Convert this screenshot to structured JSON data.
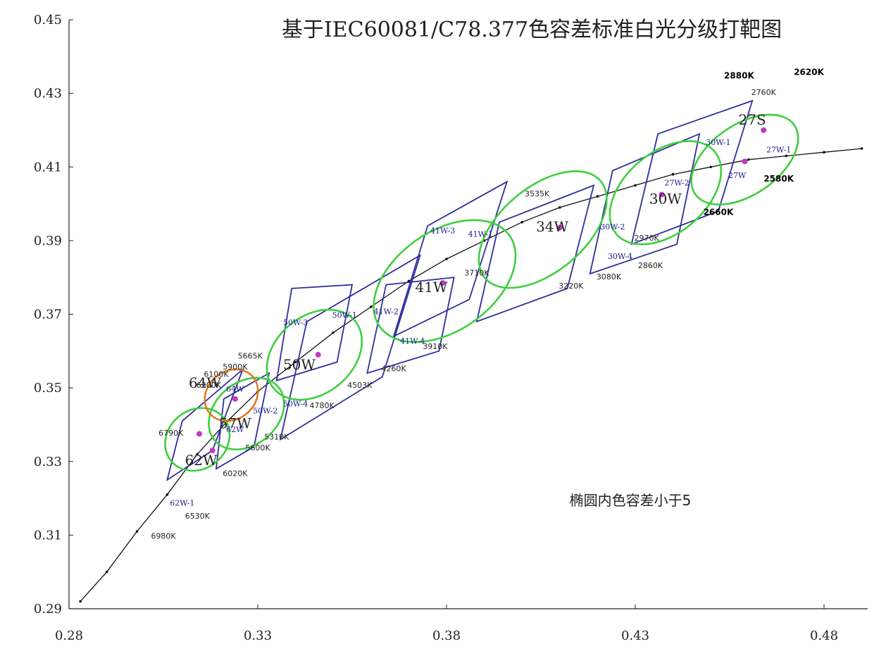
{
  "chart_data": {
    "type": "scatter",
    "title": "基于IEC60081/C78.377色容差标准白光分级打靶图",
    "annotation": "椭圆内色容差小于5",
    "xlim": [
      0.28,
      0.485
    ],
    "ylim": [
      0.29,
      0.45
    ],
    "x_ticks": [
      "0.28",
      "0.33",
      "0.38",
      "0.43",
      "0.48"
    ],
    "y_ticks": [
      "0.29",
      "0.31",
      "0.33",
      "0.35",
      "0.37",
      "0.39",
      "0.41",
      "0.43",
      "0.45"
    ],
    "x_tick_values": [
      0.28,
      0.33,
      0.38,
      0.43,
      0.48
    ],
    "y_tick_values": [
      0.29,
      0.31,
      0.33,
      0.35,
      0.37,
      0.39,
      0.41,
      0.43,
      0.45
    ],
    "grid": false,
    "colors": {
      "blue": "#2e2e9e",
      "green": "#3fcf3f",
      "magenta": "#c23ac2",
      "orange": "#e07a1f",
      "black": "#111111"
    },
    "locus": [
      [
        0.283,
        0.292
      ],
      [
        0.29,
        0.3
      ],
      [
        0.298,
        0.311
      ],
      [
        0.306,
        0.321
      ],
      [
        0.314,
        0.332
      ],
      [
        0.322,
        0.341
      ],
      [
        0.33,
        0.349
      ],
      [
        0.34,
        0.357
      ],
      [
        0.35,
        0.365
      ],
      [
        0.36,
        0.372
      ],
      [
        0.37,
        0.379
      ],
      [
        0.38,
        0.385
      ],
      [
        0.39,
        0.39
      ],
      [
        0.4,
        0.395
      ],
      [
        0.41,
        0.399
      ],
      [
        0.42,
        0.402
      ],
      [
        0.43,
        0.405
      ],
      [
        0.44,
        0.408
      ],
      [
        0.45,
        0.41
      ],
      [
        0.46,
        0.412
      ],
      [
        0.47,
        0.413
      ],
      [
        0.48,
        0.414
      ],
      [
        0.49,
        0.415
      ]
    ],
    "quads": [
      {
        "color": "blue",
        "points": [
          [
            0.394,
            0.395
          ],
          [
            0.419,
            0.405
          ],
          [
            0.412,
            0.377
          ],
          [
            0.388,
            0.368
          ]
        ]
      },
      {
        "color": "blue",
        "points": [
          [
            0.375,
            0.394
          ],
          [
            0.396,
            0.406
          ],
          [
            0.386,
            0.374
          ],
          [
            0.366,
            0.364
          ]
        ]
      },
      {
        "color": "blue",
        "points": [
          [
            0.343,
            0.368
          ],
          [
            0.373,
            0.386
          ],
          [
            0.363,
            0.353
          ],
          [
            0.336,
            0.336
          ]
        ]
      },
      {
        "color": "blue",
        "points": [
          [
            0.339,
            0.377
          ],
          [
            0.355,
            0.378
          ],
          [
            0.351,
            0.357
          ],
          [
            0.335,
            0.352
          ]
        ]
      },
      {
        "color": "blue",
        "points": [
          [
            0.364,
            0.378
          ],
          [
            0.382,
            0.38
          ],
          [
            0.378,
            0.36
          ],
          [
            0.359,
            0.354
          ]
        ]
      },
      {
        "color": "blue",
        "points": [
          [
            0.424,
            0.409
          ],
          [
            0.447,
            0.419
          ],
          [
            0.441,
            0.389
          ],
          [
            0.418,
            0.381
          ]
        ]
      },
      {
        "color": "blue",
        "points": [
          [
            0.436,
            0.419
          ],
          [
            0.461,
            0.428
          ],
          [
            0.452,
            0.398
          ],
          [
            0.429,
            0.389
          ]
        ]
      },
      {
        "color": "blue",
        "points": [
          [
            0.31,
            0.341
          ],
          [
            0.326,
            0.355
          ],
          [
            0.318,
            0.333
          ],
          [
            0.306,
            0.325
          ]
        ]
      },
      {
        "color": "blue",
        "points": [
          [
            0.321,
            0.347
          ],
          [
            0.333,
            0.354
          ],
          [
            0.329,
            0.334
          ],
          [
            0.319,
            0.328
          ]
        ]
      }
    ],
    "ellipses": [
      {
        "color": "green",
        "cx": 0.3795,
        "cy": 0.379,
        "rx": 0.021,
        "ry": 0.0135,
        "angle": -35
      },
      {
        "color": "green",
        "cx": 0.4055,
        "cy": 0.393,
        "rx": 0.02,
        "ry": 0.0115,
        "angle": -40
      },
      {
        "color": "green",
        "cx": 0.438,
        "cy": 0.403,
        "rx": 0.017,
        "ry": 0.011,
        "angle": -40
      },
      {
        "color": "green",
        "cx": 0.459,
        "cy": 0.412,
        "rx": 0.016,
        "ry": 0.0095,
        "angle": -35
      },
      {
        "color": "green",
        "cx": 0.345,
        "cy": 0.359,
        "rx": 0.014,
        "ry": 0.0105,
        "angle": -40
      },
      {
        "color": "green",
        "cx": 0.327,
        "cy": 0.343,
        "rx": 0.011,
        "ry": 0.0085,
        "angle": -40
      },
      {
        "color": "green",
        "cx": 0.314,
        "cy": 0.336,
        "rx": 0.009,
        "ry": 0.008,
        "angle": -40
      },
      {
        "color": "orange",
        "cx": 0.323,
        "cy": 0.348,
        "rx": 0.0075,
        "ry": 0.0065,
        "angle": -40
      }
    ],
    "points": [
      {
        "color": "magenta",
        "x": 0.379,
        "y": 0.3785
      },
      {
        "color": "magenta",
        "x": 0.41,
        "y": 0.3935
      },
      {
        "color": "magenta",
        "x": 0.437,
        "y": 0.4025
      },
      {
        "color": "magenta",
        "x": 0.464,
        "y": 0.42
      },
      {
        "color": "magenta",
        "x": 0.459,
        "y": 0.4115
      },
      {
        "color": "magenta",
        "x": 0.346,
        "y": 0.359
      },
      {
        "color": "magenta",
        "x": 0.324,
        "y": 0.347
      },
      {
        "color": "magenta",
        "x": 0.3145,
        "y": 0.3375
      },
      {
        "color": "magenta",
        "x": 0.318,
        "y": 0.333
      }
    ],
    "bin_labels": [
      {
        "text": "27S",
        "x": 0.461,
        "y": 0.4215,
        "size": "big"
      },
      {
        "text": "30W",
        "x": 0.438,
        "y": 0.4,
        "size": "big"
      },
      {
        "text": "34W",
        "x": 0.408,
        "y": 0.3925,
        "size": "big"
      },
      {
        "text": "41W",
        "x": 0.376,
        "y": 0.376,
        "size": "big"
      },
      {
        "text": "50W",
        "x": 0.341,
        "y": 0.355,
        "size": "big"
      },
      {
        "text": "57W",
        "x": 0.324,
        "y": 0.339,
        "size": "big"
      },
      {
        "text": "64W",
        "x": 0.316,
        "y": 0.35,
        "size": "big"
      },
      {
        "text": "62W",
        "x": 0.315,
        "y": 0.329,
        "size": "big"
      },
      {
        "text": "41W-3",
        "x": 0.379,
        "y": 0.392,
        "size": "small"
      },
      {
        "text": "41W-1",
        "x": 0.389,
        "y": 0.391,
        "size": "small"
      },
      {
        "text": "41W-2",
        "x": 0.364,
        "y": 0.37,
        "size": "small"
      },
      {
        "text": "41W-4",
        "x": 0.371,
        "y": 0.362,
        "size": "small"
      },
      {
        "text": "50W-3",
        "x": 0.34,
        "y": 0.367,
        "size": "small"
      },
      {
        "text": "50W-1",
        "x": 0.353,
        "y": 0.369,
        "size": "small"
      },
      {
        "text": "50W-4",
        "x": 0.34,
        "y": 0.345,
        "size": "small"
      },
      {
        "text": "50W-2",
        "x": 0.332,
        "y": 0.343,
        "size": "small"
      },
      {
        "text": "30W-1",
        "x": 0.452,
        "y": 0.416,
        "size": "small"
      },
      {
        "text": "30W-2",
        "x": 0.424,
        "y": 0.393,
        "size": "small"
      },
      {
        "text": "30W-4",
        "x": 0.426,
        "y": 0.385,
        "size": "small"
      },
      {
        "text": "27W-2",
        "x": 0.441,
        "y": 0.405,
        "size": "small"
      },
      {
        "text": "27W",
        "x": 0.457,
        "y": 0.407,
        "size": "small"
      },
      {
        "text": "27W-1",
        "x": 0.468,
        "y": 0.414,
        "size": "small"
      },
      {
        "text": "62W",
        "x": 0.324,
        "y": 0.338,
        "size": "small"
      },
      {
        "text": "62W-1",
        "x": 0.31,
        "y": 0.318,
        "size": "small"
      },
      {
        "text": "64W",
        "x": 0.324,
        "y": 0.349,
        "size": "small"
      }
    ],
    "cct_labels": [
      {
        "text": "2880K",
        "x": 0.4575,
        "y": 0.434,
        "bold": true
      },
      {
        "text": "2620K",
        "x": 0.476,
        "y": 0.435,
        "bold": true
      },
      {
        "text": "2760K",
        "x": 0.464,
        "y": 0.4295,
        "bold": false
      },
      {
        "text": "2580K",
        "x": 0.468,
        "y": 0.406,
        "bold": true
      },
      {
        "text": "2660K",
        "x": 0.452,
        "y": 0.397,
        "bold": true
      },
      {
        "text": "2970K",
        "x": 0.433,
        "y": 0.39,
        "bold": false
      },
      {
        "text": "2860K",
        "x": 0.434,
        "y": 0.3825,
        "bold": false
      },
      {
        "text": "3080K",
        "x": 0.423,
        "y": 0.3795,
        "bold": false
      },
      {
        "text": "3220K",
        "x": 0.413,
        "y": 0.377,
        "bold": false
      },
      {
        "text": "3535K",
        "x": 0.404,
        "y": 0.402,
        "bold": false
      },
      {
        "text": "3710K",
        "x": 0.388,
        "y": 0.3805,
        "bold": false
      },
      {
        "text": "3910K",
        "x": 0.377,
        "y": 0.3605,
        "bold": false
      },
      {
        "text": "4260K",
        "x": 0.366,
        "y": 0.3545,
        "bold": false
      },
      {
        "text": "4503K",
        "x": 0.357,
        "y": 0.35,
        "bold": false
      },
      {
        "text": "4780K",
        "x": 0.347,
        "y": 0.3445,
        "bold": false
      },
      {
        "text": "5310K",
        "x": 0.335,
        "y": 0.336,
        "bold": false
      },
      {
        "text": "5600K",
        "x": 0.33,
        "y": 0.333,
        "bold": false
      },
      {
        "text": "5665K",
        "x": 0.328,
        "y": 0.358,
        "bold": false
      },
      {
        "text": "5900K",
        "x": 0.324,
        "y": 0.355,
        "bold": false
      },
      {
        "text": "6100K",
        "x": 0.319,
        "y": 0.353,
        "bold": false
      },
      {
        "text": "6300K",
        "x": 0.317,
        "y": 0.35,
        "bold": false
      },
      {
        "text": "6020K",
        "x": 0.324,
        "y": 0.326,
        "bold": false
      },
      {
        "text": "6790K",
        "x": 0.307,
        "y": 0.337,
        "bold": false
      },
      {
        "text": "6530K",
        "x": 0.314,
        "y": 0.3145,
        "bold": false
      },
      {
        "text": "6980K",
        "x": 0.305,
        "y": 0.309,
        "bold": false
      }
    ]
  }
}
